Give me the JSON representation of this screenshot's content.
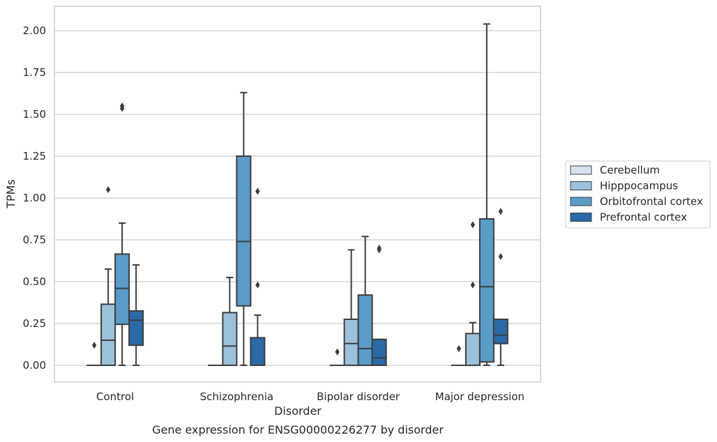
{
  "chart_data": {
    "type": "boxplot",
    "title": "Gene expression for ENSG00000226277 by disorder",
    "xlabel": "Disorder",
    "ylabel": "TPMs",
    "ylim": [
      -0.1,
      2.15
    ],
    "yticks": [
      "0.00",
      "0.25",
      "0.50",
      "0.75",
      "1.00",
      "1.25",
      "1.50",
      "1.75",
      "2.00"
    ],
    "ytick_values": [
      0,
      0.25,
      0.5,
      0.75,
      1.0,
      1.25,
      1.5,
      1.75,
      2.0
    ],
    "grid": true,
    "legend_position": "right",
    "categories": [
      "Control",
      "Schizophrenia",
      "Bipolar disorder",
      "Major depression"
    ],
    "series": [
      {
        "name": "Cerebellum",
        "color": "#d5e3ef",
        "boxes": [
          {
            "q1": 0,
            "median": 0,
            "q3": 0,
            "whislo": 0,
            "whishi": 0,
            "fliers": [
              0.12
            ]
          },
          {
            "q1": 0,
            "median": 0,
            "q3": 0,
            "whislo": 0,
            "whishi": 0,
            "fliers": []
          },
          {
            "q1": 0,
            "median": 0,
            "q3": 0,
            "whislo": 0,
            "whishi": 0,
            "fliers": [
              0.08
            ]
          },
          {
            "q1": 0,
            "median": 0,
            "q3": 0,
            "whislo": 0,
            "whishi": 0,
            "fliers": [
              0.1
            ]
          }
        ]
      },
      {
        "name": "Hipppocampus",
        "color": "#9cc1dc",
        "boxes": [
          {
            "q1": 0,
            "median": 0.15,
            "q3": 0.365,
            "whislo": 0,
            "whishi": 0.575,
            "fliers": [
              1.05
            ]
          },
          {
            "q1": 0,
            "median": 0.115,
            "q3": 0.315,
            "whislo": 0,
            "whishi": 0.525,
            "fliers": []
          },
          {
            "q1": 0,
            "median": 0.13,
            "q3": 0.275,
            "whislo": 0,
            "whishi": 0.69,
            "fliers": []
          },
          {
            "q1": 0,
            "median": 0,
            "q3": 0.19,
            "whislo": 0,
            "whishi": 0.255,
            "fliers": [
              0.48,
              0.84
            ]
          }
        ]
      },
      {
        "name": "Orbitofrontal cortex",
        "color": "#5b9bc8",
        "boxes": [
          {
            "q1": 0.245,
            "median": 0.46,
            "q3": 0.665,
            "whislo": 0,
            "whishi": 0.85,
            "fliers": [
              1.535,
              1.55
            ]
          },
          {
            "q1": 0.355,
            "median": 0.74,
            "q3": 1.25,
            "whislo": 0,
            "whishi": 1.63,
            "fliers": []
          },
          {
            "q1": 0,
            "median": 0.1,
            "q3": 0.42,
            "whislo": 0,
            "whishi": 0.77,
            "fliers": []
          },
          {
            "q1": 0.02,
            "median": 0.47,
            "q3": 0.875,
            "whislo": 0,
            "whishi": 2.04,
            "fliers": []
          }
        ]
      },
      {
        "name": "Prefrontal cortex",
        "color": "#2b6aa7",
        "boxes": [
          {
            "q1": 0.12,
            "median": 0.27,
            "q3": 0.325,
            "whislo": 0,
            "whishi": 0.6,
            "fliers": []
          },
          {
            "q1": 0,
            "median": 0,
            "q3": 0.165,
            "whislo": 0,
            "whishi": 0.3,
            "fliers": [
              0.48,
              1.04
            ]
          },
          {
            "q1": 0,
            "median": 0.045,
            "q3": 0.155,
            "whislo": 0,
            "whishi": 0.155,
            "fliers": [
              0.69,
              0.7
            ]
          },
          {
            "q1": 0.13,
            "median": 0.18,
            "q3": 0.275,
            "whislo": 0,
            "whishi": 0.275,
            "fliers": [
              0.65,
              0.92
            ]
          }
        ]
      }
    ]
  }
}
